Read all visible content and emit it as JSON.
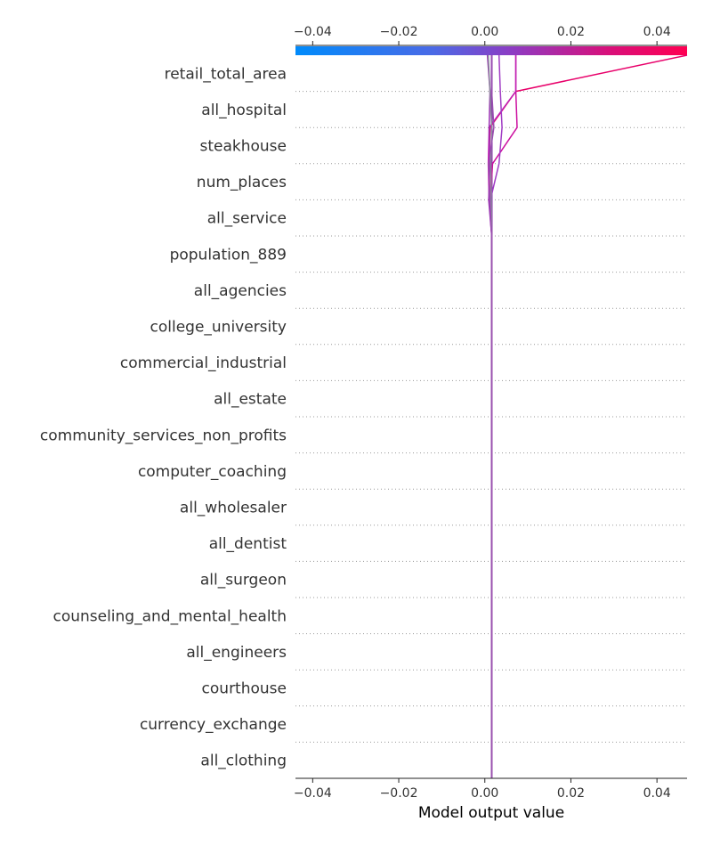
{
  "chart_data": {
    "type": "line",
    "title": "",
    "xlabel": "Model output value",
    "ylabel": "",
    "xlim": [
      -0.044,
      0.047
    ],
    "xticks": [
      -0.04,
      -0.02,
      0.0,
      0.02,
      0.04
    ],
    "xtick_labels": [
      "−0.04",
      "−0.02",
      "0.00",
      "0.02",
      "0.04"
    ],
    "grid": "dotted horizontal",
    "colormap": [
      "#008bfb",
      "#ff0052"
    ],
    "features": [
      "retail_total_area",
      "all_hospital",
      "steakhouse",
      "num_places",
      "all_service",
      "population_889",
      "all_agencies",
      "college_university",
      "commercial_industrial",
      "all_estate",
      "community_services_non_profits",
      "computer_coaching",
      "all_wholesaler",
      "all_dentist",
      "all_surgeon",
      "counseling_and_mental_health",
      "all_engineers",
      "courthouse",
      "currency_exchange",
      "all_clothing"
    ],
    "base_value": 0.0016,
    "series": [
      {
        "color": "#8a2cad",
        "values": [
          0.0016,
          0.0016,
          0.0016,
          0.0016,
          0.0016,
          0.0016,
          0.0016,
          0.0016,
          0.0016,
          0.0016,
          0.0016,
          0.0016,
          0.0016,
          0.0016,
          0.0016,
          0.0016,
          0.0016,
          0.0016,
          0.0016,
          0.0016,
          0.0016
        ]
      },
      {
        "color": "#e8006a",
        "values": [
          0.0016,
          0.0016,
          0.0016,
          0.0016,
          0.0016,
          0.0016,
          0.0016,
          0.0016,
          0.0016,
          0.0016,
          0.0016,
          0.0016,
          0.0016,
          0.0016,
          0.0016,
          0.0016,
          0.0012,
          0.001,
          0.0012,
          0.0072,
          0.047
        ]
      },
      {
        "color": "#cc10a0",
        "values": [
          0.0016,
          0.0016,
          0.0016,
          0.0016,
          0.0016,
          0.0016,
          0.0016,
          0.0016,
          0.0016,
          0.0016,
          0.0016,
          0.0016,
          0.0016,
          0.0016,
          0.0016,
          0.0016,
          0.0013,
          0.0018,
          0.0075,
          0.0072,
          0.0072
        ]
      },
      {
        "color": "#c020b4",
        "values": [
          0.0016,
          0.0016,
          0.0016,
          0.0016,
          0.0016,
          0.0016,
          0.0016,
          0.0016,
          0.0016,
          0.0016,
          0.0016,
          0.0016,
          0.0016,
          0.0016,
          0.0016,
          0.0016,
          0.001,
          0.0008,
          0.001,
          0.0072,
          0.0072
        ]
      },
      {
        "color": "#9b30b4",
        "values": [
          0.0016,
          0.0016,
          0.0016,
          0.0016,
          0.0016,
          0.0016,
          0.0016,
          0.0016,
          0.0016,
          0.0016,
          0.0016,
          0.0016,
          0.0016,
          0.0016,
          0.0016,
          0.0016,
          0.0009,
          0.0012,
          0.001,
          0.0012,
          0.0006
        ]
      },
      {
        "color": "#a03cc4",
        "values": [
          0.0016,
          0.0016,
          0.0016,
          0.0016,
          0.0016,
          0.0016,
          0.0016,
          0.0016,
          0.0016,
          0.0016,
          0.0016,
          0.0016,
          0.0016,
          0.0016,
          0.0016,
          0.0016,
          0.0013,
          0.0033,
          0.004,
          0.0036,
          0.0033
        ]
      },
      {
        "color": "#8c8c9c",
        "values": [
          0.0016,
          0.0016,
          0.0016,
          0.0016,
          0.0016,
          0.0016,
          0.0016,
          0.0016,
          0.0016,
          0.0016,
          0.0016,
          0.0016,
          0.0016,
          0.0016,
          0.0016,
          0.0016,
          0.0015,
          0.0014,
          0.0016,
          0.0012,
          0.0008
        ]
      },
      {
        "color": "#9a50b0",
        "values": [
          0.0016,
          0.0016,
          0.0016,
          0.0016,
          0.0016,
          0.0016,
          0.0016,
          0.0016,
          0.0016,
          0.0016,
          0.0016,
          0.0016,
          0.0016,
          0.0016,
          0.0016,
          0.0016,
          0.0012,
          0.0009,
          0.0021,
          0.0016,
          0.0016
        ]
      }
    ]
  }
}
